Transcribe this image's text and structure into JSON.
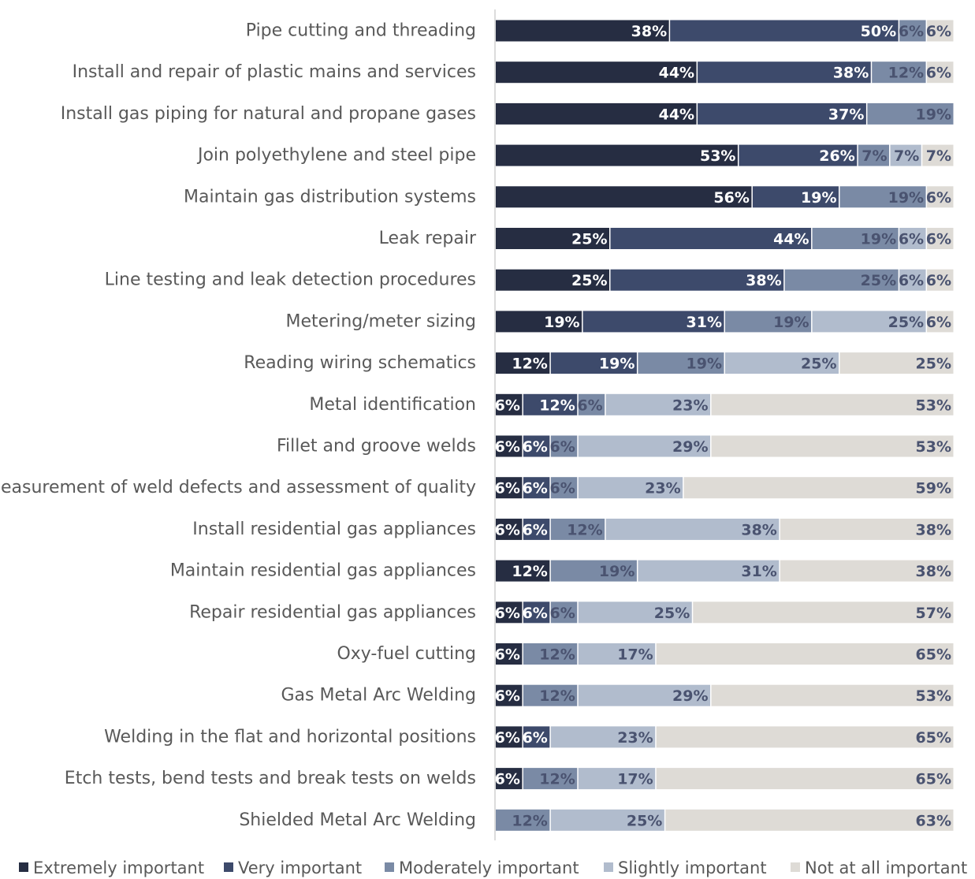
{
  "chart_data": {
    "type": "bar",
    "orientation": "horizontal",
    "stacked": true,
    "percent_stacked": true,
    "legend_position": "bottom",
    "grid": false,
    "xlim": [
      0,
      100
    ],
    "categories": [
      "Pipe cutting and threading",
      "Install and repair of plastic mains and services",
      "Install gas piping for natural and propane gases",
      "Join polyethylene and steel pipe",
      "Maintain gas distribution systems",
      "Leak repair",
      "Line testing and leak detection procedures",
      "Metering/meter sizing",
      "Reading wiring schematics",
      "Metal identification",
      "Fillet and groove welds",
      "Measurement of weld defects and assessment of quality",
      "Install residential gas appliances",
      "Maintain residential gas appliances",
      "Repair residential gas appliances",
      "Oxy-fuel cutting",
      "Gas Metal Arc Welding",
      "Welding in the flat and horizontal positions",
      "Etch tests, bend tests and break tests on welds",
      "Shielded Metal Arc Welding"
    ],
    "series": [
      {
        "name": "Extremely important",
        "color": "#262d42",
        "label_color": "#ffffff",
        "values": [
          38,
          44,
          44,
          53,
          56,
          25,
          25,
          19,
          12,
          6,
          6,
          6,
          6,
          12,
          6,
          6,
          6,
          6,
          6,
          0
        ]
      },
      {
        "name": "Very important",
        "color": "#3d4a6b",
        "label_color": "#ffffff",
        "values": [
          50,
          38,
          37,
          26,
          19,
          44,
          38,
          31,
          19,
          12,
          6,
          6,
          6,
          0,
          6,
          0,
          0,
          6,
          0,
          0
        ]
      },
      {
        "name": "Moderately important",
        "color": "#7a8aa5",
        "label_color": "#4a5370",
        "values": [
          6,
          12,
          19,
          7,
          19,
          19,
          25,
          19,
          19,
          6,
          6,
          6,
          12,
          19,
          6,
          12,
          12,
          0,
          12,
          12
        ]
      },
      {
        "name": "Slightly important",
        "color": "#b1bccd",
        "label_color": "#4a5370",
        "values": [
          0,
          0,
          0,
          7,
          0,
          6,
          6,
          25,
          25,
          23,
          29,
          23,
          38,
          31,
          25,
          17,
          29,
          23,
          17,
          25
        ]
      },
      {
        "name": "Not at all important",
        "color": "#dedbd6",
        "label_color": "#4a5370",
        "values": [
          6,
          6,
          0,
          7,
          6,
          6,
          6,
          6,
          25,
          53,
          53,
          59,
          38,
          38,
          57,
          65,
          53,
          65,
          65,
          63
        ]
      }
    ]
  }
}
